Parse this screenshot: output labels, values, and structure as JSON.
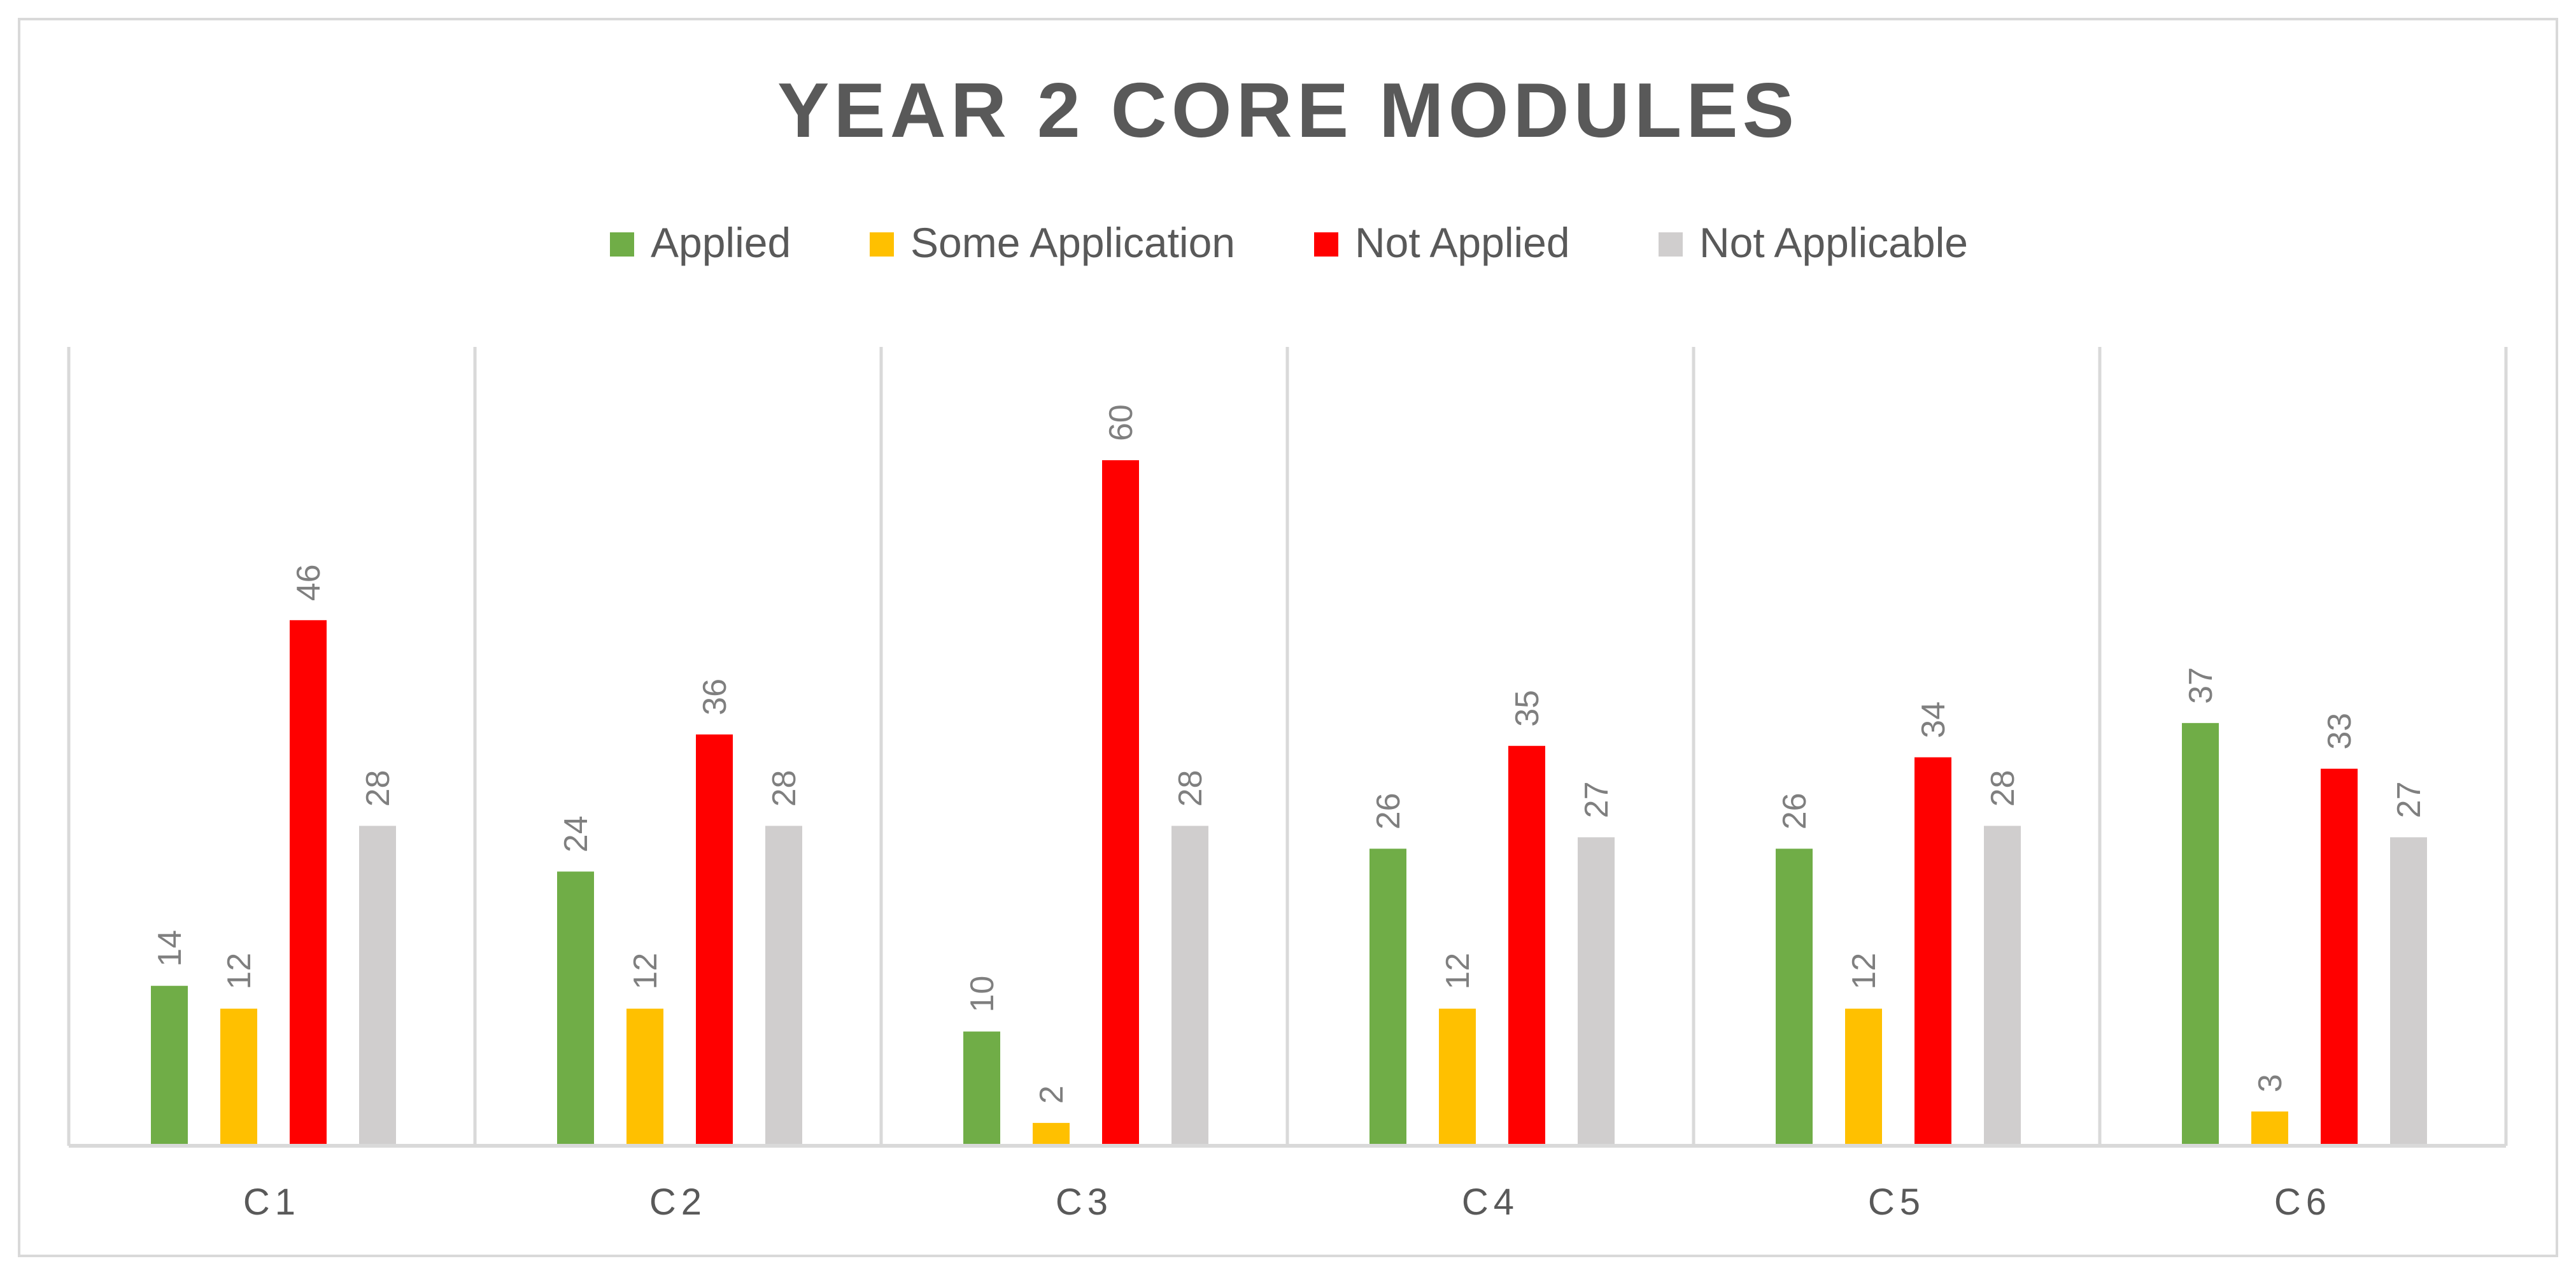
{
  "chart_data": {
    "type": "bar",
    "title": "YEAR 2 CORE MODULES",
    "xlabel": "",
    "ylabel": "",
    "ylim": [
      0,
      70
    ],
    "grid": "vertical category separators",
    "legend_position": "top",
    "categories": [
      "C1",
      "C2",
      "C3",
      "C4",
      "C5",
      "C6"
    ],
    "series": [
      {
        "name": "Applied",
        "color": "#70ad47",
        "values": [
          14,
          24,
          10,
          26,
          26,
          37
        ]
      },
      {
        "name": "Some Application",
        "color": "#ffc000",
        "values": [
          12,
          12,
          2,
          12,
          12,
          3
        ]
      },
      {
        "name": "Not Applied",
        "color": "#ff0000",
        "values": [
          46,
          36,
          60,
          35,
          34,
          33
        ]
      },
      {
        "name": "Not Applicable",
        "color": "#d0cece",
        "values": [
          28,
          28,
          28,
          27,
          28,
          27
        ]
      }
    ]
  }
}
